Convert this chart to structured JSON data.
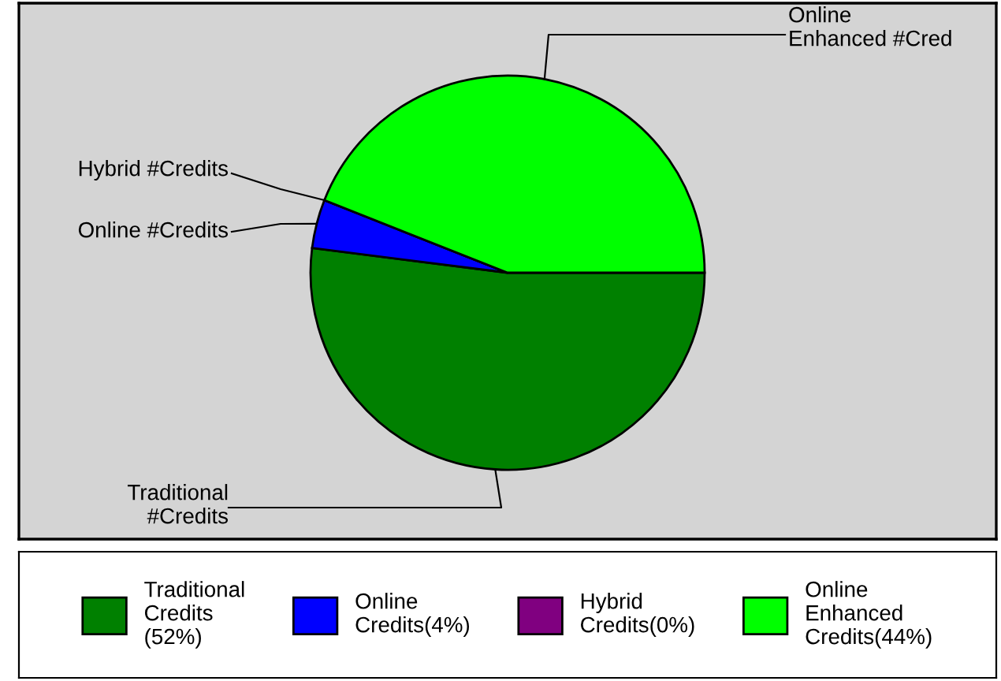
{
  "chart_data": {
    "type": "pie",
    "categories": [
      "Traditional\nCredits\n(52%)",
      "Online\nCredits(4%)",
      "Hybrid\nCredits(0%)",
      "Online\nEnhanced\nCredits(44%)"
    ],
    "values": [
      52,
      4,
      0,
      44
    ],
    "colors": [
      "#008000",
      "#0000ff",
      "#800080",
      "#00ff00"
    ],
    "annotations": [
      "Traditional\n#Credits",
      "Online #Credits",
      "Hybrid #Credits",
      "Online\nEnhanced #Cred"
    ],
    "legend": "bottom"
  }
}
